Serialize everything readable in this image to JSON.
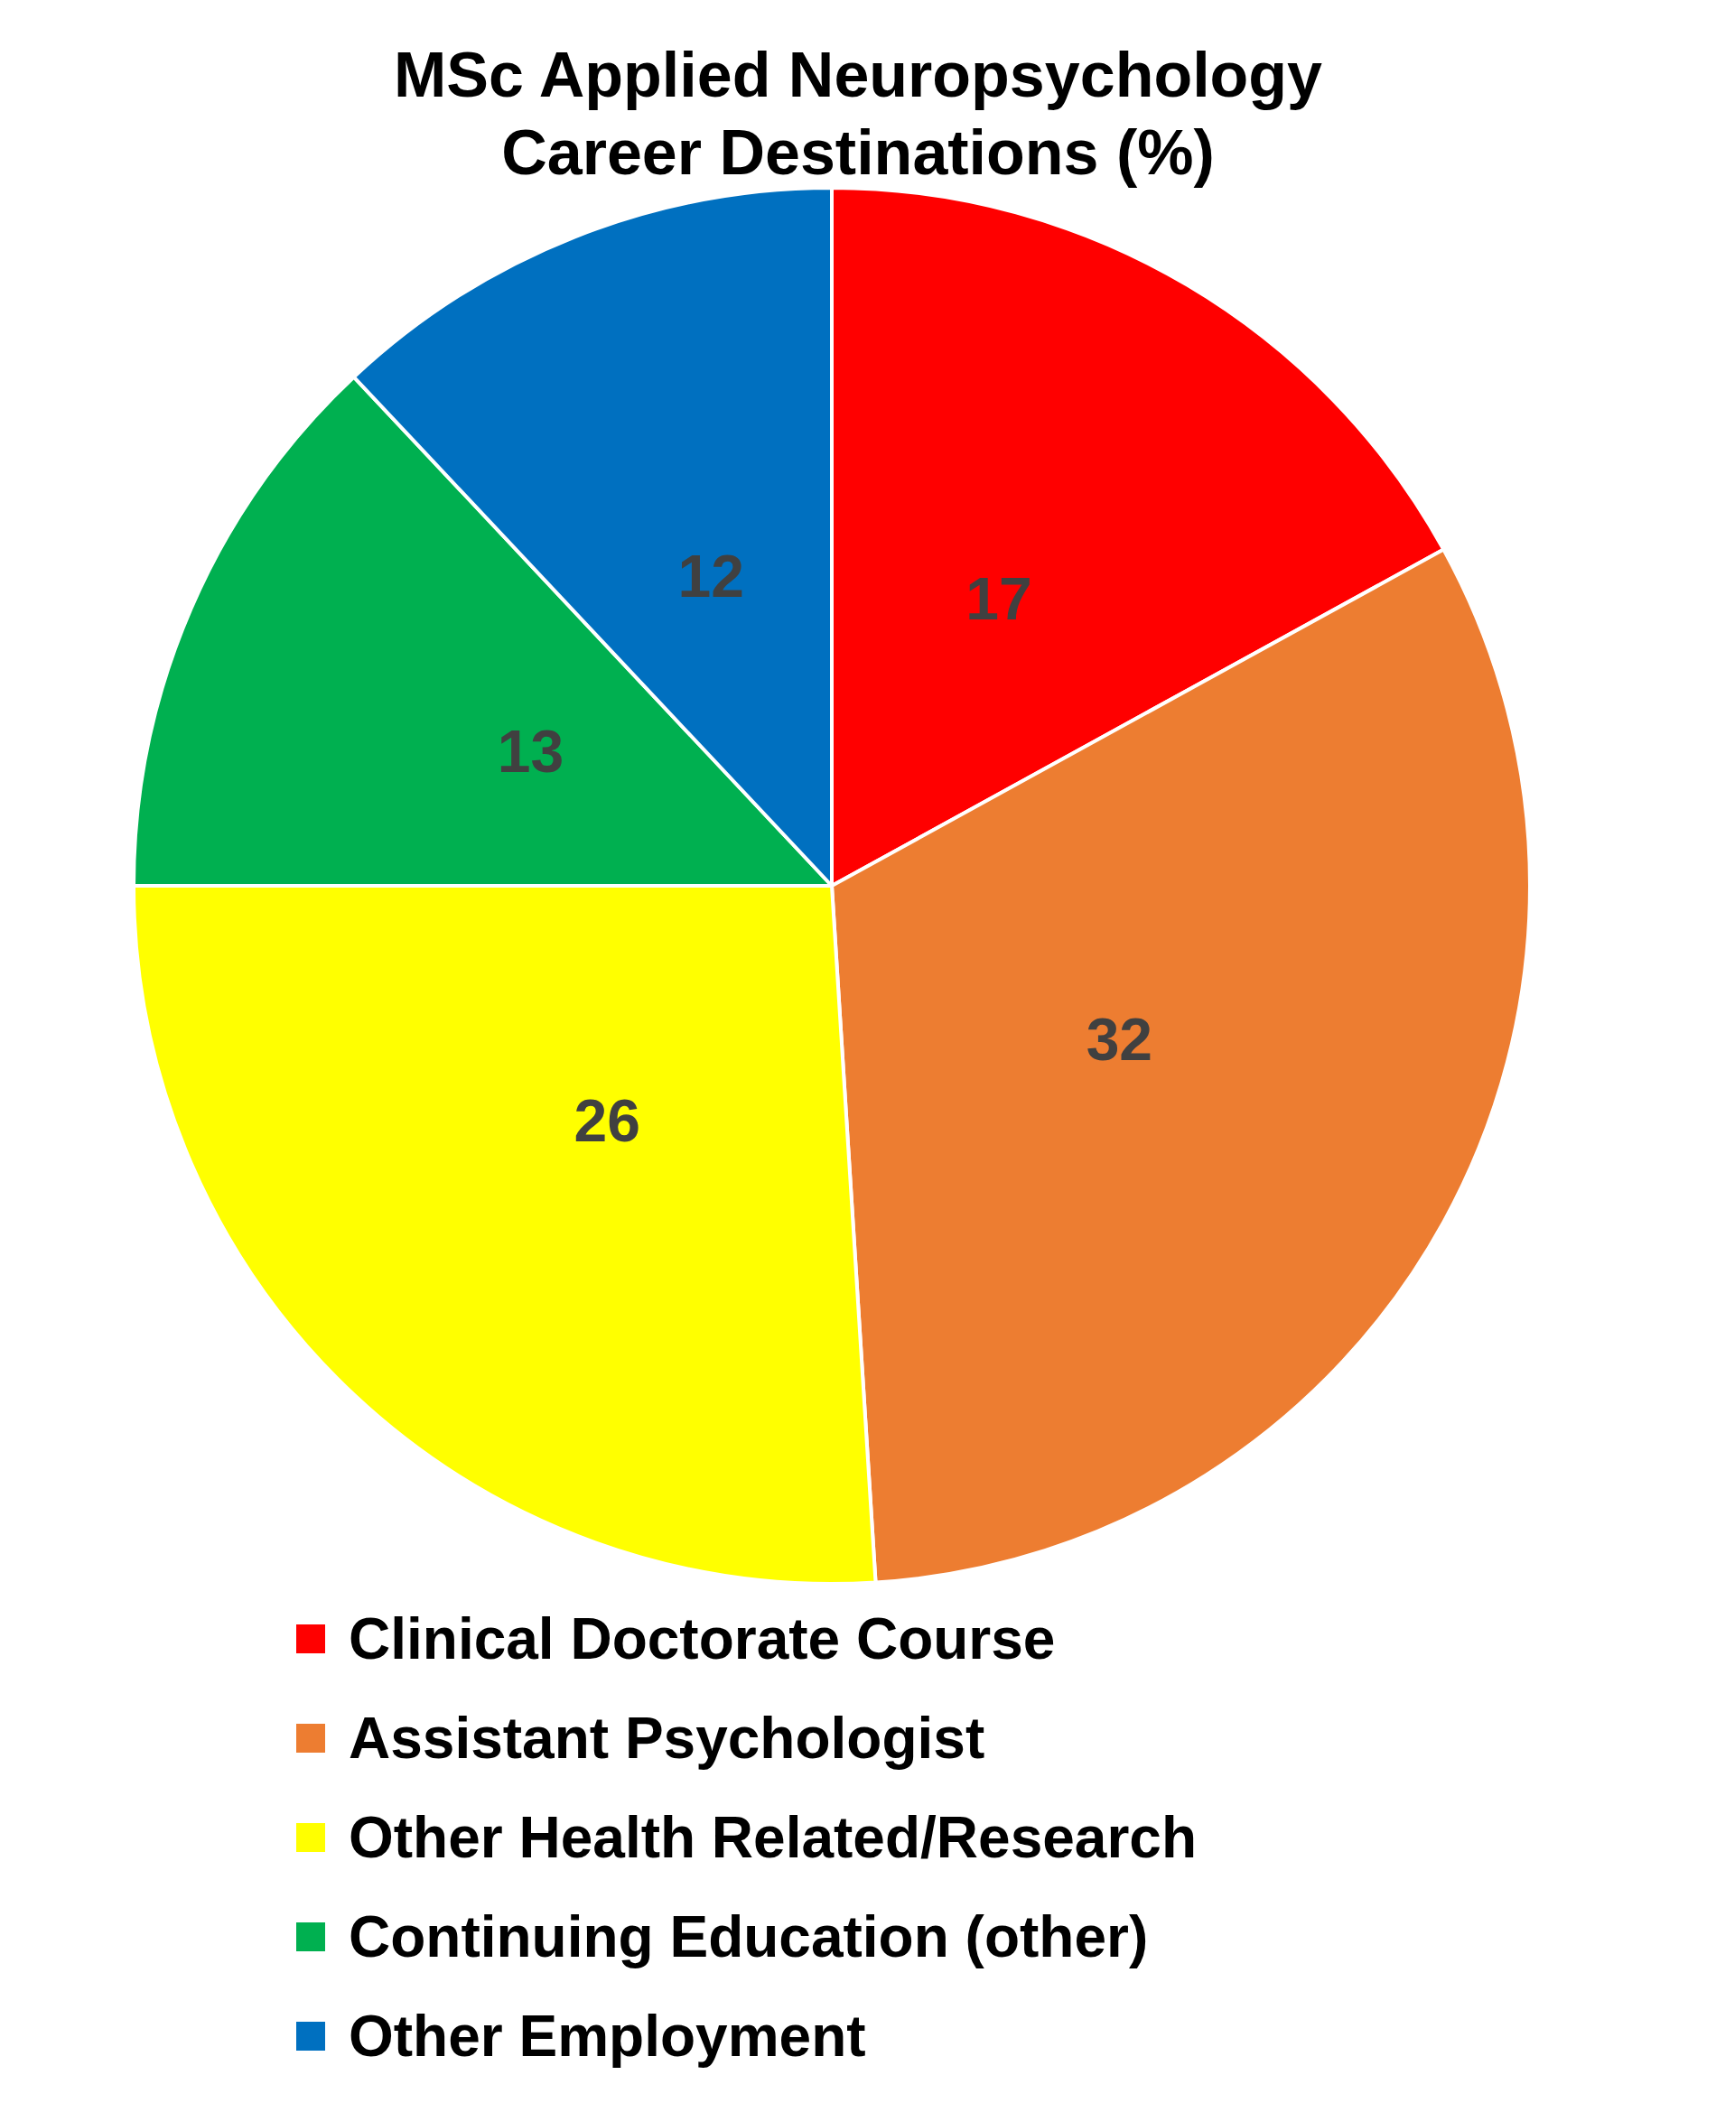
{
  "chart_data": {
    "type": "pie",
    "title": "MSc Applied Neuropsychology\nCareer Destinations (%)",
    "categories": [
      "Clinical Doctorate Course",
      "Assistant Psychologist",
      "Other Health Related/Research",
      "Continuing Education (other)",
      "Other Employment"
    ],
    "values": [
      17,
      32,
      26,
      13,
      12
    ],
    "colors": [
      "#ff0000",
      "#ed7d31",
      "#ffff00",
      "#00b050",
      "#0070c0"
    ],
    "data_labels": true,
    "legend": "bottom"
  }
}
